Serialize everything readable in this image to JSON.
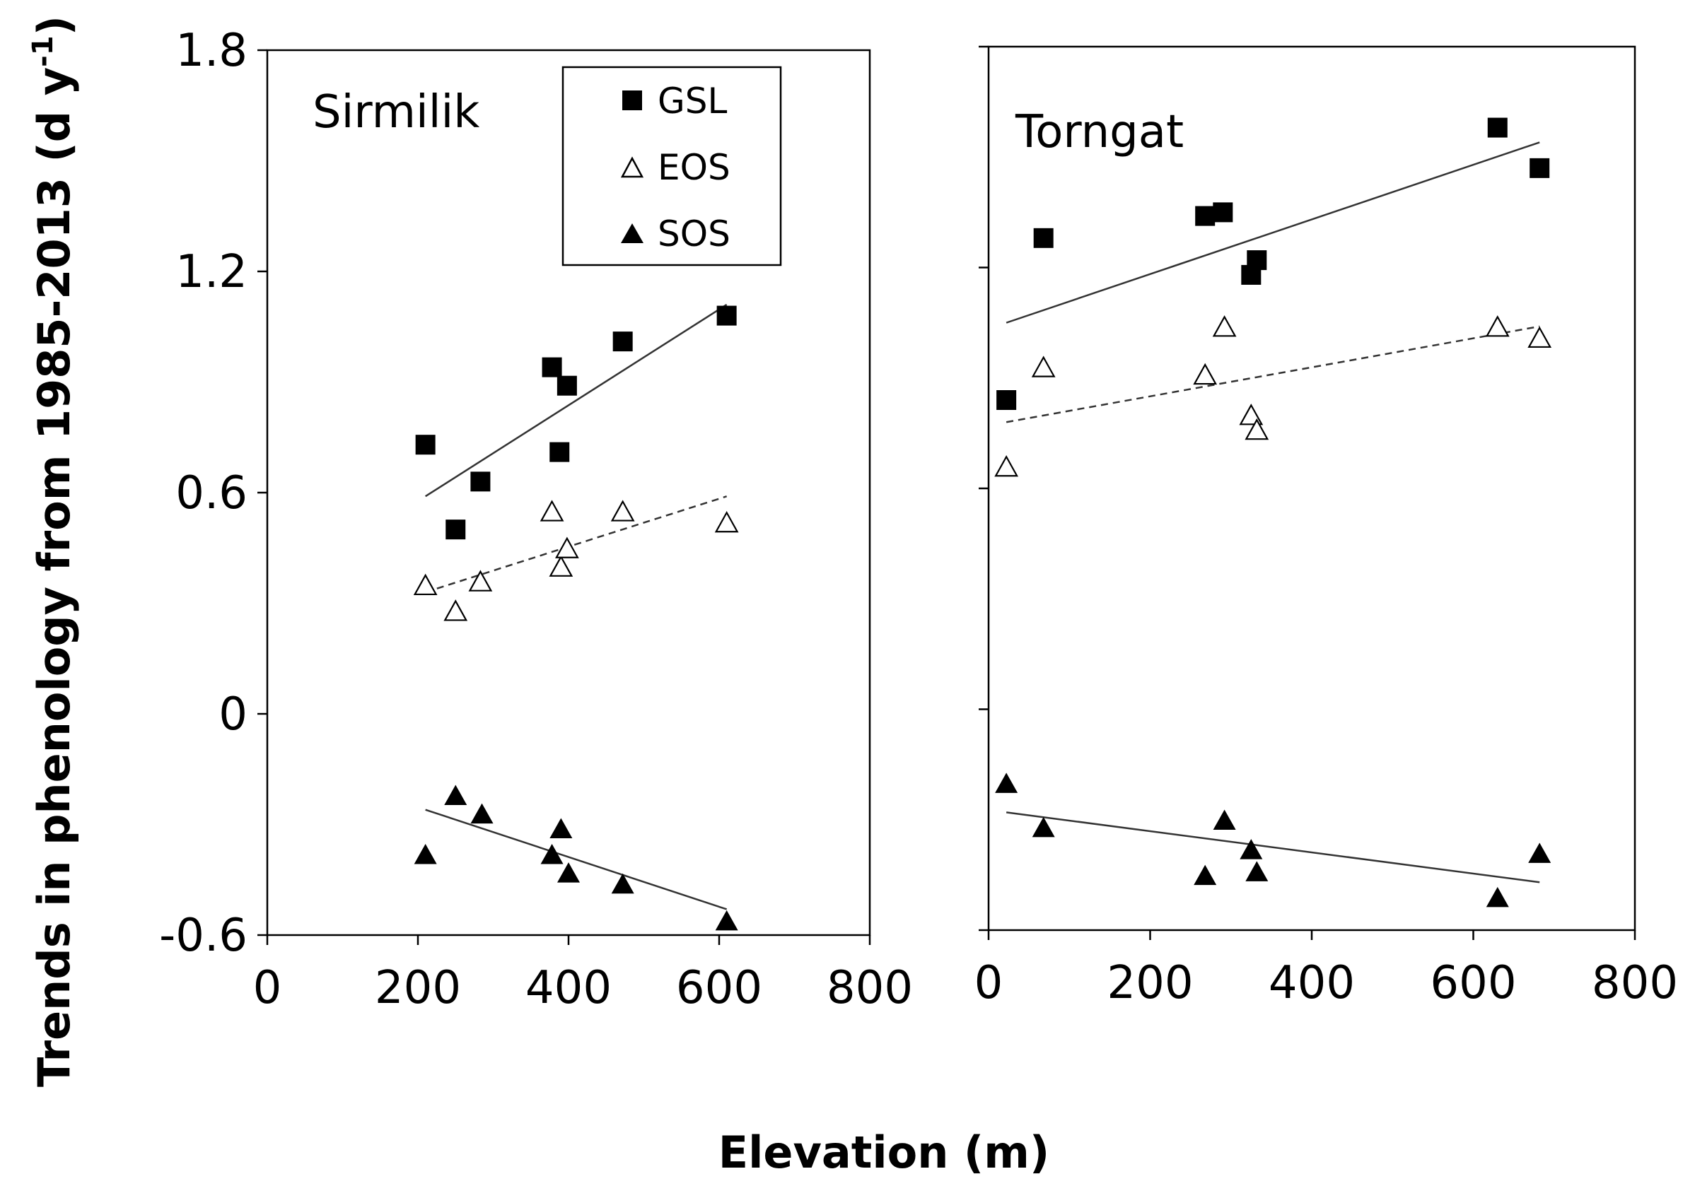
{
  "chart_data": {
    "type": "scatter",
    "ylabel": "Trends in phenology from 1985-2013 (d y⁻¹)",
    "ylabel_main": "Trends in phenology from 1985-2013 (d y",
    "ylabel_sup": "-1",
    "ylabel_close": ")",
    "xlabel": "Elevation  (m)",
    "ylim": [
      -0.6,
      1.8
    ],
    "yticks": [
      1.8,
      1.2,
      0.6,
      0,
      -0.6
    ],
    "ytick_labels": [
      "1.8",
      "1.2",
      "0.6",
      "0",
      "-0.6"
    ],
    "xlim": [
      0,
      800
    ],
    "xticks": [
      0,
      200,
      400,
      600,
      800
    ],
    "xtick_labels": [
      "0",
      "200",
      "400",
      "600",
      "800"
    ],
    "legend": [
      {
        "key": "GSL",
        "label": "GSL",
        "marker": "filled-square"
      },
      {
        "key": "EOS",
        "label": "EOS",
        "marker": "open-triangle"
      },
      {
        "key": "SOS",
        "label": "SOS",
        "marker": "filled-triangle"
      }
    ],
    "legend_position": "top-right of first panel",
    "panels": [
      {
        "title": "Sirmilik",
        "series": [
          {
            "name": "GSL",
            "marker": "filled-square",
            "points": [
              [
                210,
                0.73
              ],
              [
                250,
                0.5
              ],
              [
                283,
                0.63
              ],
              [
                378,
                0.94
              ],
              [
                388,
                0.71
              ],
              [
                398,
                0.89
              ],
              [
                472,
                1.01
              ],
              [
                610,
                1.08
              ]
            ],
            "trend": {
              "style": "solid",
              "from": [
                210,
                0.59
              ],
              "to": [
                610,
                1.11
              ]
            }
          },
          {
            "name": "EOS",
            "marker": "open-triangle",
            "points": [
              [
                210,
                0.35
              ],
              [
                250,
                0.28
              ],
              [
                283,
                0.36
              ],
              [
                378,
                0.55
              ],
              [
                390,
                0.4
              ],
              [
                398,
                0.45
              ],
              [
                472,
                0.55
              ],
              [
                610,
                0.52
              ]
            ],
            "trend": {
              "style": "dashed",
              "from": [
                210,
                0.33
              ],
              "to": [
                610,
                0.59
              ]
            }
          },
          {
            "name": "SOS",
            "marker": "filled-triangle",
            "points": [
              [
                210,
                -0.38
              ],
              [
                250,
                -0.22
              ],
              [
                285,
                -0.27
              ],
              [
                378,
                -0.38
              ],
              [
                390,
                -0.31
              ],
              [
                400,
                -0.43
              ],
              [
                472,
                -0.46
              ],
              [
                610,
                -0.56
              ]
            ],
            "trend": {
              "style": "solid",
              "from": [
                210,
                -0.26
              ],
              "to": [
                610,
                -0.53
              ]
            }
          }
        ]
      },
      {
        "title": "Torngat",
        "series": [
          {
            "name": "GSL",
            "marker": "filled-square",
            "points": [
              [
                22,
                0.84
              ],
              [
                68,
                1.28
              ],
              [
                268,
                1.34
              ],
              [
                290,
                1.35
              ],
              [
                325,
                1.18
              ],
              [
                332,
                1.22
              ],
              [
                630,
                1.58
              ],
              [
                682,
                1.47
              ]
            ],
            "trend": {
              "style": "solid",
              "from": [
                22,
                1.05
              ],
              "to": [
                682,
                1.54
              ]
            }
          },
          {
            "name": "EOS",
            "marker": "open-triangle",
            "points": [
              [
                22,
                0.66
              ],
              [
                68,
                0.93
              ],
              [
                268,
                0.91
              ],
              [
                292,
                1.04
              ],
              [
                325,
                0.8
              ],
              [
                332,
                0.76
              ],
              [
                630,
                1.04
              ],
              [
                682,
                1.01
              ]
            ],
            "trend": {
              "style": "dashed",
              "from": [
                22,
                0.78
              ],
              "to": [
                682,
                1.04
              ]
            }
          },
          {
            "name": "SOS",
            "marker": "filled-triangle",
            "points": [
              [
                22,
                -0.2
              ],
              [
                68,
                -0.32
              ],
              [
                268,
                -0.45
              ],
              [
                292,
                -0.3
              ],
              [
                325,
                -0.38
              ],
              [
                332,
                -0.44
              ],
              [
                630,
                -0.51
              ],
              [
                682,
                -0.39
              ]
            ],
            "trend": {
              "style": "solid",
              "from": [
                22,
                -0.28
              ],
              "to": [
                682,
                -0.47
              ]
            }
          }
        ]
      }
    ]
  }
}
